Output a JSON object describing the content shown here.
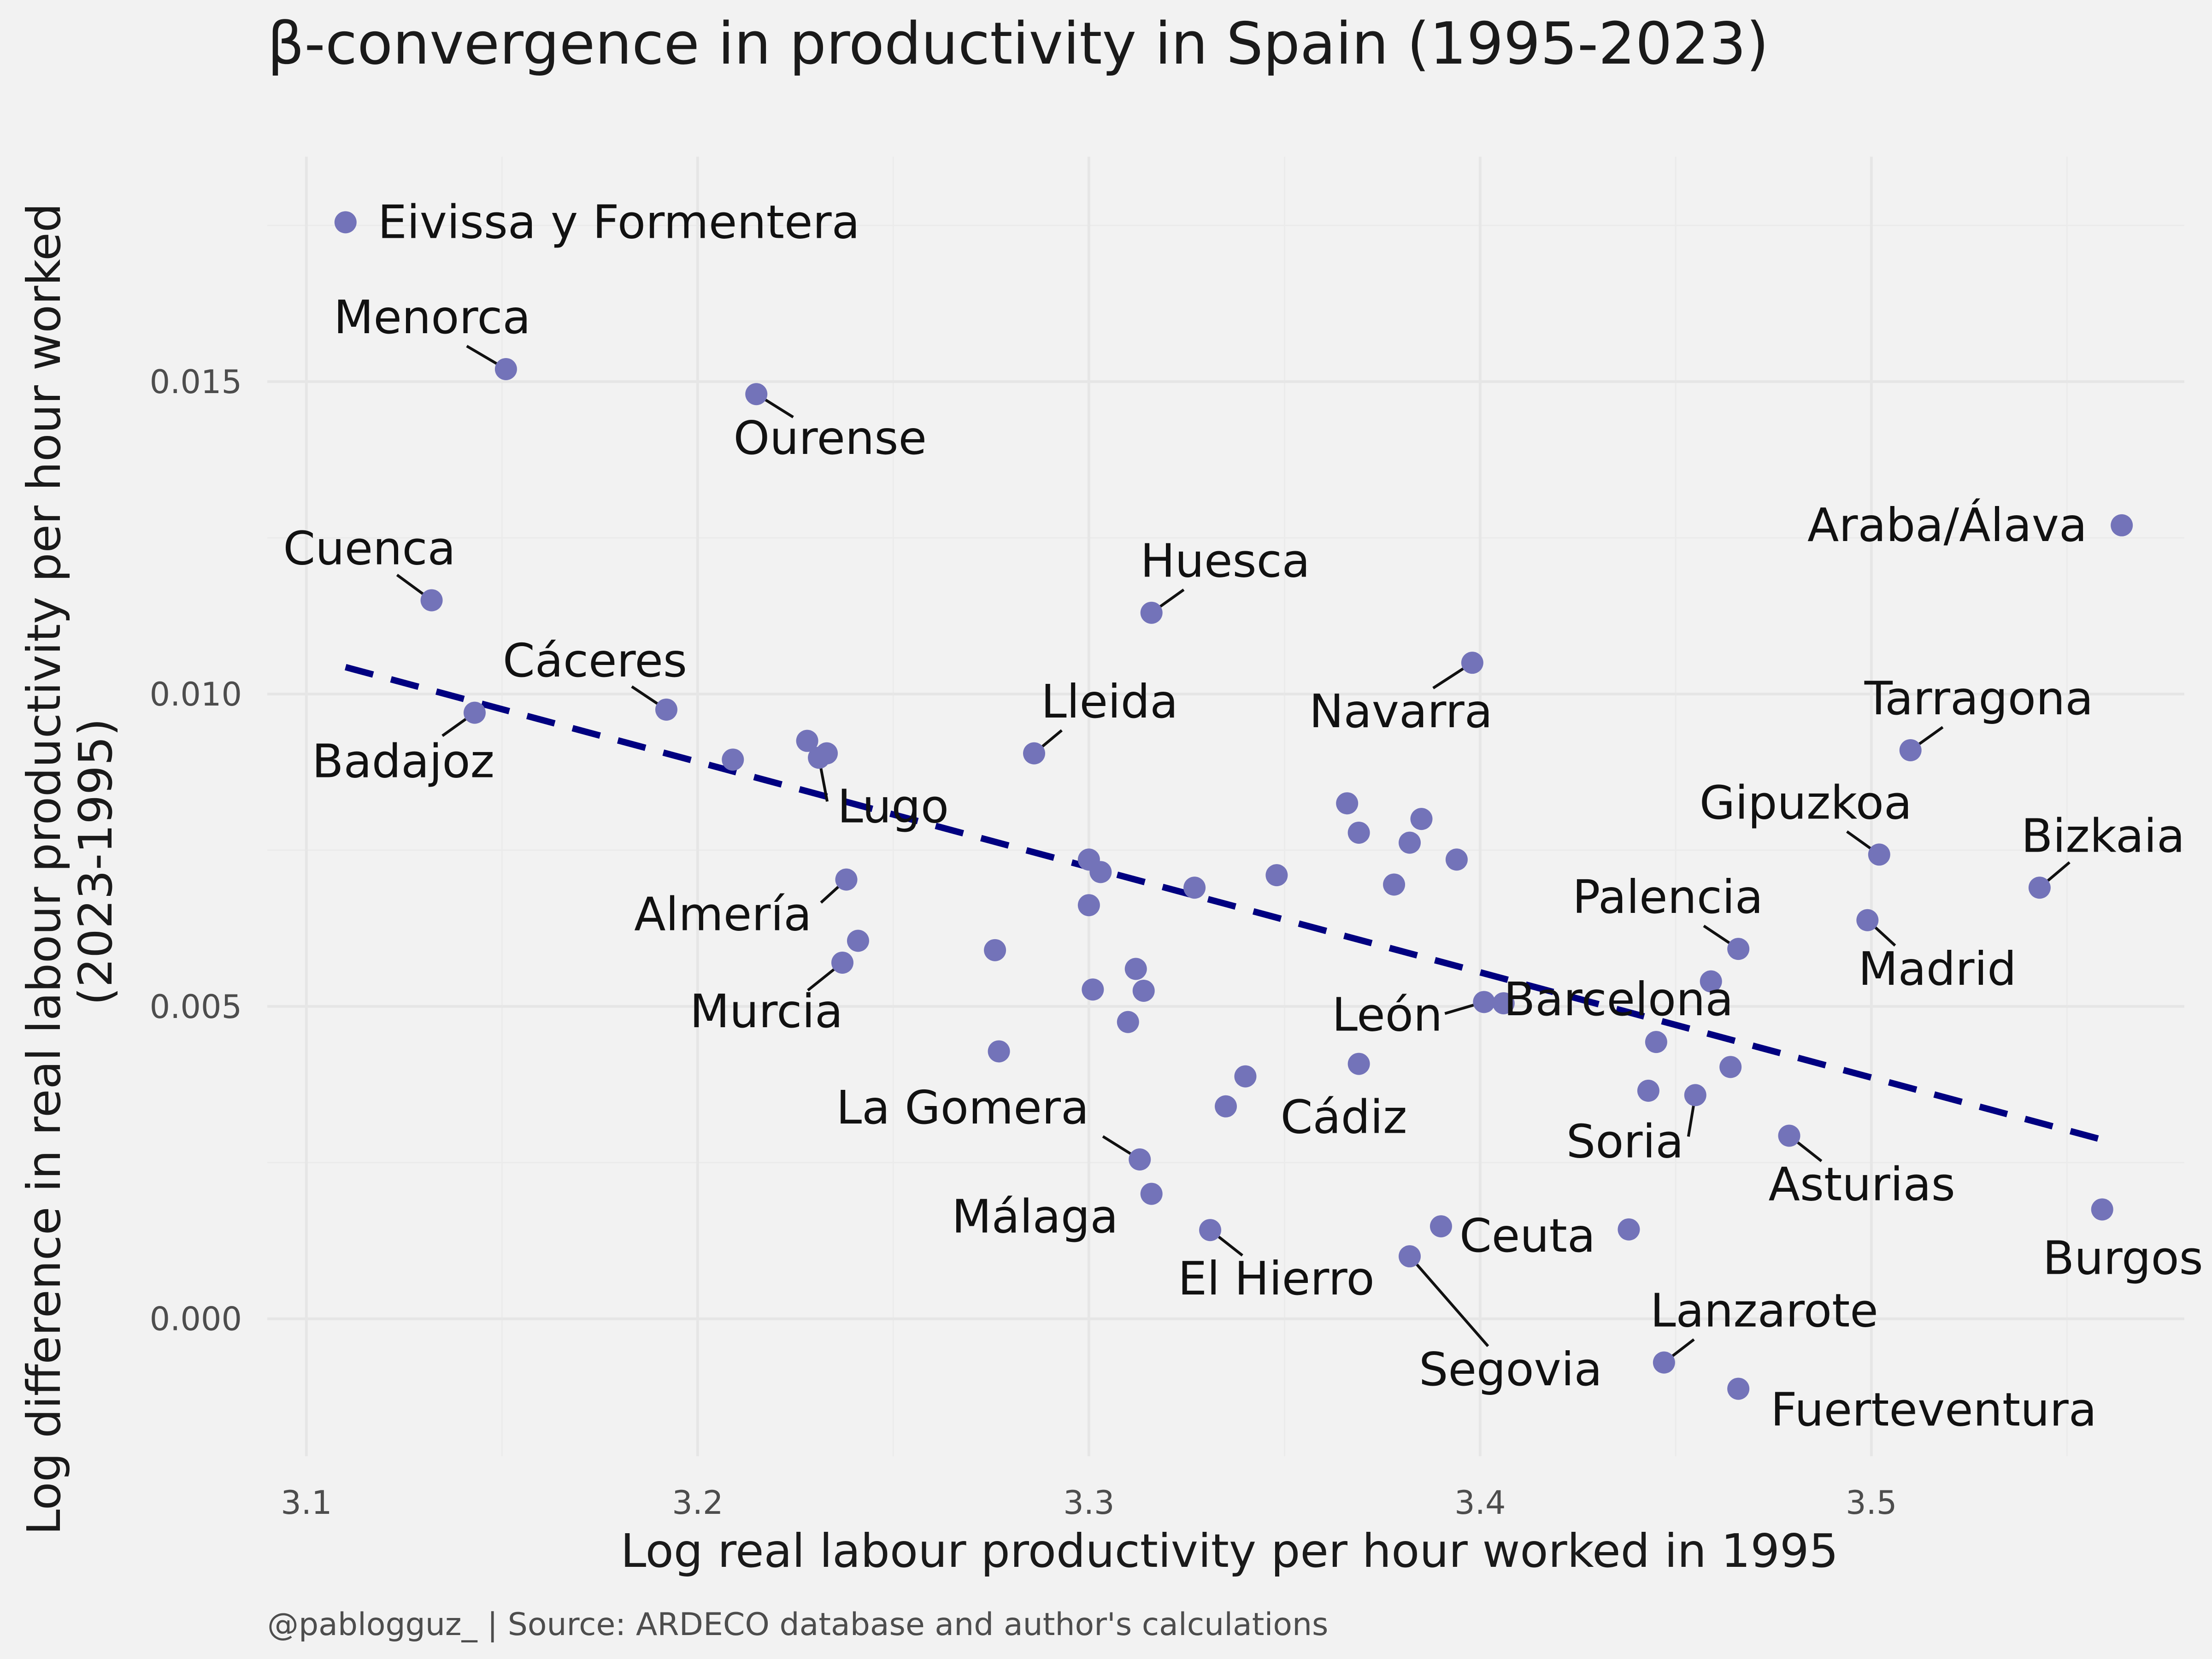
{
  "title": "β-convergence in productivity in Spain (1995-2023)",
  "caption": "@pablogguz_ | Source: ARDECO database and author's calculations",
  "colors": {
    "background": "#f2f2f2",
    "points": "#7373b9",
    "trend": "#000080"
  },
  "chart_data": {
    "type": "scatter",
    "title": "β-convergence in productivity in Spain (1995-2023)",
    "xlabel": "Log real labour productivity per hour worked in 1995",
    "ylabel": "Log difference in real labour productivity per hour worked (2023-1995)",
    "xlim": [
      3.09,
      3.58
    ],
    "ylim": [
      -0.0022,
      0.0186
    ],
    "x_ticks": [
      3.1,
      3.2,
      3.3,
      3.4,
      3.5
    ],
    "x_tick_labels": [
      "3.1",
      "3.2",
      "3.3",
      "3.4",
      "3.5"
    ],
    "y_ticks": [
      0.0,
      0.005,
      0.01,
      0.015
    ],
    "y_tick_labels": [
      "0.000",
      "0.005",
      "0.010",
      "0.015"
    ],
    "grid": true,
    "legend": "none",
    "trend_line": {
      "style": "dashed",
      "x": [
        3.11,
        3.56
      ],
      "y": [
        0.01043,
        0.00285
      ]
    },
    "points": [
      {
        "label": "Eivissa y Formentera",
        "x": 3.11,
        "y": 0.01755
      },
      {
        "label": "Menorca",
        "x": 3.151,
        "y": 0.0152
      },
      {
        "label": "Ourense",
        "x": 3.215,
        "y": 0.0148
      },
      {
        "label": "Cuenca",
        "x": 3.132,
        "y": 0.0115
      },
      {
        "label": "Araba/Álava",
        "x": 3.564,
        "y": 0.0127
      },
      {
        "label": "Huesca",
        "x": 3.316,
        "y": 0.0113
      },
      {
        "label": "Navarra",
        "x": 3.398,
        "y": 0.0105
      },
      {
        "label": "Cáceres",
        "x": 3.192,
        "y": 0.00975
      },
      {
        "label": "Badajoz",
        "x": 3.143,
        "y": 0.0097
      },
      {
        "label": "",
        "x": 3.209,
        "y": 0.00895
      },
      {
        "label": "",
        "x": 3.228,
        "y": 0.00925
      },
      {
        "label": "Lugo",
        "x": 3.231,
        "y": 0.00898
      },
      {
        "label": "",
        "x": 3.233,
        "y": 0.00905
      },
      {
        "label": "Lleida",
        "x": 3.286,
        "y": 0.00905
      },
      {
        "label": "Tarragona",
        "x": 3.51,
        "y": 0.0091
      },
      {
        "label": "",
        "x": 3.366,
        "y": 0.00825
      },
      {
        "label": "",
        "x": 3.385,
        "y": 0.008
      },
      {
        "label": "",
        "x": 3.369,
        "y": 0.00778
      },
      {
        "label": "",
        "x": 3.382,
        "y": 0.00762
      },
      {
        "label": "",
        "x": 3.394,
        "y": 0.00735
      },
      {
        "label": "",
        "x": 3.3,
        "y": 0.00735
      },
      {
        "label": "",
        "x": 3.303,
        "y": 0.00715
      },
      {
        "label": "",
        "x": 3.348,
        "y": 0.0071
      },
      {
        "label": "",
        "x": 3.378,
        "y": 0.00695
      },
      {
        "label": "",
        "x": 3.327,
        "y": 0.0069
      },
      {
        "label": "Gipuzkoa",
        "x": 3.502,
        "y": 0.00743
      },
      {
        "label": "Bizkaia",
        "x": 3.543,
        "y": 0.0069
      },
      {
        "label": "Almería",
        "x": 3.238,
        "y": 0.00703
      },
      {
        "label": "",
        "x": 3.3,
        "y": 0.00662
      },
      {
        "label": "Madrid",
        "x": 3.499,
        "y": 0.00638
      },
      {
        "label": "",
        "x": 3.241,
        "y": 0.00605
      },
      {
        "label": "",
        "x": 3.276,
        "y": 0.0059
      },
      {
        "label": "Palencia",
        "x": 3.466,
        "y": 0.00592
      },
      {
        "label": "Murcia",
        "x": 3.237,
        "y": 0.0057
      },
      {
        "label": "",
        "x": 3.312,
        "y": 0.0056
      },
      {
        "label": "",
        "x": 3.459,
        "y": 0.0054
      },
      {
        "label": "",
        "x": 3.301,
        "y": 0.00527
      },
      {
        "label": "",
        "x": 3.314,
        "y": 0.00525
      },
      {
        "label": "León",
        "x": 3.401,
        "y": 0.00507
      },
      {
        "label": "Barcelona",
        "x": 3.406,
        "y": 0.00505
      },
      {
        "label": "",
        "x": 3.31,
        "y": 0.00475
      },
      {
        "label": "",
        "x": 3.445,
        "y": 0.00443
      },
      {
        "label": "",
        "x": 3.277,
        "y": 0.00428
      },
      {
        "label": "Cádiz",
        "x": 3.369,
        "y": 0.00408
      },
      {
        "label": "",
        "x": 3.464,
        "y": 0.00403
      },
      {
        "label": "",
        "x": 3.34,
        "y": 0.00388
      },
      {
        "label": "",
        "x": 3.443,
        "y": 0.00365
      },
      {
        "label": "Soria",
        "x": 3.455,
        "y": 0.00358
      },
      {
        "label": "",
        "x": 3.335,
        "y": 0.0034
      },
      {
        "label": "Asturias",
        "x": 3.479,
        "y": 0.00293
      },
      {
        "label": "La Gomera",
        "x": 3.313,
        "y": 0.00255
      },
      {
        "label": "Málaga",
        "x": 3.316,
        "y": 0.002
      },
      {
        "label": "Burgos",
        "x": 3.559,
        "y": 0.00175
      },
      {
        "label": "Ceuta",
        "x": 3.39,
        "y": 0.00148
      },
      {
        "label": "",
        "x": 3.438,
        "y": 0.00143
      },
      {
        "label": "El Hierro",
        "x": 3.331,
        "y": 0.00142
      },
      {
        "label": "Segovia",
        "x": 3.382,
        "y": 0.001
      },
      {
        "label": "Lanzarote",
        "x": 3.447,
        "y": -0.0007
      },
      {
        "label": "Fuerteventura",
        "x": 3.466,
        "y": -0.00112
      }
    ]
  }
}
